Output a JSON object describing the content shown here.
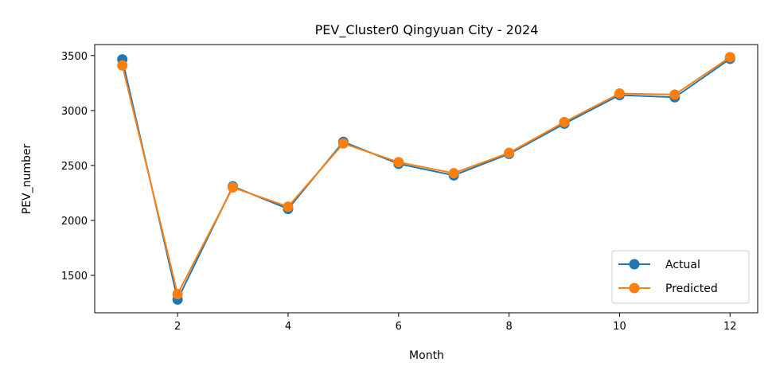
{
  "chart_data": {
    "type": "line",
    "title": "PEV_Cluster0 Qingyuan City - 2024",
    "xlabel": "Month",
    "ylabel": "PEV_number",
    "x": [
      1,
      2,
      3,
      4,
      5,
      6,
      7,
      8,
      9,
      10,
      11,
      12
    ],
    "xlim": [
      0.5,
      12.5
    ],
    "ylim": [
      1160,
      3600
    ],
    "xticks": [
      2,
      4,
      6,
      8,
      10,
      12
    ],
    "yticks": [
      1500,
      2000,
      2500,
      3000,
      3500
    ],
    "grid": false,
    "legend_position": "lower-right",
    "series": [
      {
        "name": "Actual",
        "color": "#1f77b4",
        "values": [
          3465,
          1280,
          2310,
          2105,
          2715,
          2515,
          2410,
          2605,
          2880,
          3140,
          3120,
          3470
        ]
      },
      {
        "name": "Predicted",
        "color": "#ff7f0e",
        "values": [
          3410,
          1330,
          2300,
          2125,
          2700,
          2530,
          2430,
          2615,
          2895,
          3155,
          3145,
          3485
        ]
      }
    ]
  }
}
